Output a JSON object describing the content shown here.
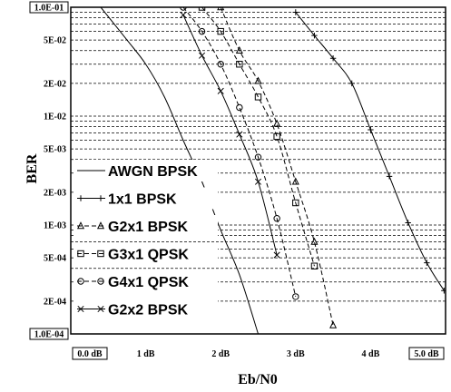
{
  "chart_data": {
    "type": "line",
    "xlabel": "Eb/N0",
    "ylabel": "BER",
    "xlim": [
      0,
      5
    ],
    "ylim": [
      0.0001,
      0.1
    ],
    "yscale": "log",
    "x_ticks": [
      "0.0 dB",
      "1 dB",
      "2 dB",
      "3 dB",
      "4 dB",
      "5.0 dB"
    ],
    "y_ticks": [
      {
        "value": 0.1,
        "label": "1.0E-01",
        "boxed": true
      },
      {
        "value": 0.05,
        "label": "5E-02"
      },
      {
        "value": 0.02,
        "label": "2E-02"
      },
      {
        "value": 0.01,
        "label": "1E-02"
      },
      {
        "value": 0.005,
        "label": "5E-03"
      },
      {
        "value": 0.002,
        "label": "2E-03"
      },
      {
        "value": 0.001,
        "label": "1E-03"
      },
      {
        "value": 0.0005,
        "label": "5E-04"
      },
      {
        "value": 0.0002,
        "label": "2E-04"
      },
      {
        "value": 0.0001,
        "label": "1.0E-04",
        "boxed": true
      }
    ],
    "grid": "horizontal-dashed",
    "legend_position": "bottom-left",
    "series": [
      {
        "name": "AWGN BPSK",
        "marker": "none",
        "dash": "solid",
        "points": [
          [
            0.4,
            0.1
          ],
          [
            0.75,
            0.05
          ],
          [
            1.0,
            0.03
          ],
          [
            1.25,
            0.015
          ],
          [
            1.5,
            0.006
          ],
          [
            1.75,
            0.0025
          ],
          [
            2.0,
            0.0009
          ],
          [
            2.25,
            0.00035
          ],
          [
            2.5,
            0.0001
          ]
        ]
      },
      {
        "name": "1x1 BPSK",
        "marker": "plus",
        "dash": "solid",
        "points": [
          [
            3.0,
            0.09
          ],
          [
            3.25,
            0.055
          ],
          [
            3.5,
            0.034
          ],
          [
            3.75,
            0.02
          ],
          [
            4.0,
            0.0075
          ],
          [
            4.25,
            0.0028
          ],
          [
            4.5,
            0.00105
          ],
          [
            4.75,
            0.00045
          ],
          [
            4.98,
            0.00025
          ]
        ]
      },
      {
        "name": "G2x1 BPSK",
        "marker": "triangle",
        "dash": "dashed",
        "points": [
          [
            2.0,
            0.1
          ],
          [
            2.25,
            0.04
          ],
          [
            2.5,
            0.021
          ],
          [
            2.75,
            0.0085
          ],
          [
            3.0,
            0.0025
          ],
          [
            3.25,
            0.0007
          ],
          [
            3.5,
            0.00012
          ]
        ]
      },
      {
        "name": "G3x1 QPSK",
        "marker": "square",
        "dash": "dashed",
        "points": [
          [
            1.75,
            0.1
          ],
          [
            2.0,
            0.06
          ],
          [
            2.25,
            0.03
          ],
          [
            2.5,
            0.015
          ],
          [
            2.75,
            0.0065
          ],
          [
            3.0,
            0.0016
          ],
          [
            3.25,
            0.00042
          ]
        ]
      },
      {
        "name": "G4x1 QPSK",
        "marker": "circle",
        "dash": "dashed",
        "points": [
          [
            1.5,
            0.1
          ],
          [
            1.75,
            0.06
          ],
          [
            2.0,
            0.03
          ],
          [
            2.25,
            0.012
          ],
          [
            2.5,
            0.0042
          ],
          [
            2.75,
            0.00115
          ],
          [
            3.0,
            0.00022
          ]
        ]
      },
      {
        "name": "G2x2 BPSK",
        "marker": "x",
        "dash": "solid",
        "points": [
          [
            1.5,
            0.085
          ],
          [
            1.75,
            0.036
          ],
          [
            2.0,
            0.017
          ],
          [
            2.25,
            0.0068
          ],
          [
            2.5,
            0.0025
          ],
          [
            2.75,
            0.00053
          ]
        ]
      }
    ]
  }
}
